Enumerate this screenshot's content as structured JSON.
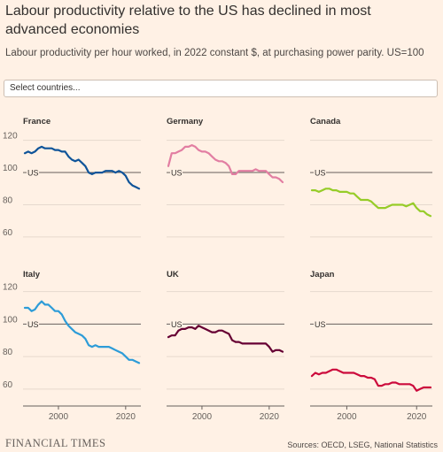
{
  "title": "Labour productivity relative to the US has declined in most advanced economies",
  "subtitle": "Labour productivity per hour worked, in 2022 constant $, at purchasing power parity. US=100",
  "selector_placeholder": "Select countries...",
  "footer": {
    "brand": "FINANCIAL TIMES",
    "source": "Sources: OECD, LSEG, National Statistics"
  },
  "chart_data": {
    "type": "line",
    "reference_label": "US",
    "reference_value": 100,
    "xlim": [
      1990,
      2024
    ],
    "ylim": [
      55,
      122
    ],
    "y_ticks": [
      60,
      80,
      100,
      120
    ],
    "x_ticks": [
      2000,
      2020
    ],
    "colors": {
      "France": "#0f5499",
      "Germany": "#e27ea2",
      "Canada": "#96cc28",
      "Italy": "#2d9cd8",
      "UK": "#660033",
      "Japan": "#cc0a3c"
    },
    "x": [
      1990,
      1991,
      1992,
      1993,
      1994,
      1995,
      1996,
      1997,
      1998,
      1999,
      2000,
      2001,
      2002,
      2003,
      2004,
      2005,
      2006,
      2007,
      2008,
      2009,
      2010,
      2011,
      2012,
      2013,
      2014,
      2015,
      2016,
      2017,
      2018,
      2019,
      2020,
      2021,
      2022,
      2023,
      2024
    ],
    "series": [
      {
        "name": "France",
        "values": [
          112,
          113,
          112,
          113,
          115,
          116,
          115,
          115,
          115,
          114,
          114,
          113,
          113,
          110,
          108,
          107,
          108,
          106,
          104,
          100,
          99,
          100,
          100,
          100,
          101,
          101,
          101,
          100,
          101,
          100,
          98,
          94,
          92,
          91,
          90
        ]
      },
      {
        "name": "Germany",
        "values": [
          104,
          112,
          112,
          113,
          114,
          116,
          116,
          117,
          116,
          114,
          113,
          113,
          112,
          110,
          108,
          107,
          107,
          106,
          104,
          99,
          99,
          101,
          101,
          101,
          101,
          101,
          102,
          101,
          101,
          101,
          99,
          97,
          97,
          96,
          94
        ]
      },
      {
        "name": "Canada",
        "values": [
          89,
          89,
          88,
          89,
          90,
          90,
          89,
          89,
          88,
          88,
          88,
          87,
          87,
          85,
          83,
          83,
          83,
          82,
          80,
          78,
          78,
          78,
          79,
          80,
          80,
          80,
          80,
          79,
          80,
          81,
          78,
          76,
          76,
          74,
          73
        ]
      },
      {
        "name": "Italy",
        "values": [
          110,
          110,
          108,
          109,
          112,
          114,
          112,
          112,
          110,
          108,
          108,
          106,
          102,
          99,
          97,
          95,
          94,
          93,
          91,
          87,
          86,
          87,
          86,
          86,
          86,
          86,
          85,
          84,
          83,
          82,
          80,
          78,
          78,
          77,
          76
        ]
      },
      {
        "name": "UK",
        "values": [
          92,
          93,
          93,
          96,
          97,
          97,
          98,
          98,
          97,
          99,
          98,
          97,
          96,
          95,
          95,
          96,
          96,
          95,
          94,
          90,
          89,
          89,
          88,
          88,
          88,
          88,
          88,
          88,
          88,
          88,
          86,
          83,
          84,
          84,
          83
        ]
      },
      {
        "name": "Japan",
        "values": [
          68,
          70,
          69,
          70,
          70,
          71,
          72,
          72,
          71,
          70,
          70,
          70,
          70,
          69,
          68,
          68,
          67,
          67,
          66,
          62,
          62,
          63,
          63,
          64,
          64,
          63,
          63,
          63,
          63,
          62,
          59,
          60,
          61,
          61,
          61
        ]
      }
    ]
  }
}
